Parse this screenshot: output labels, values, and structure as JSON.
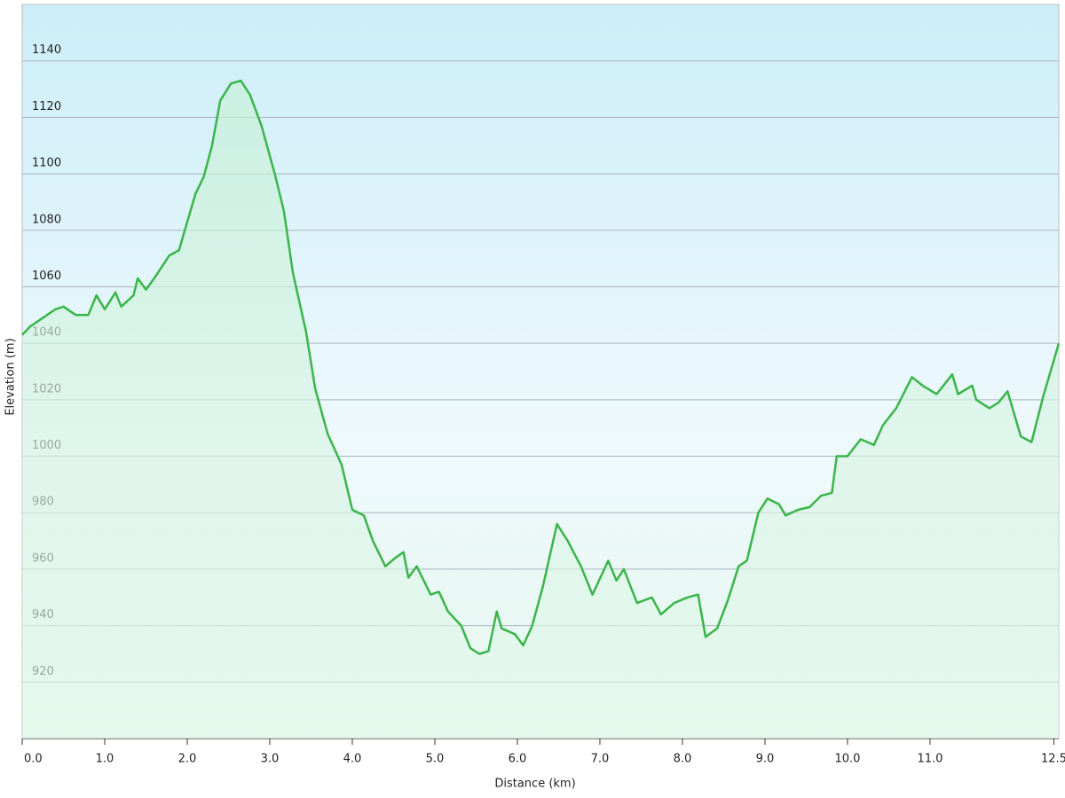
{
  "chart_data": {
    "type": "area",
    "xlabel": "Distance  (km)",
    "ylabel": "Elevation (m)",
    "x": [
      0,
      0.1,
      0.2,
      0.3,
      0.4,
      0.5,
      0.65,
      0.8,
      0.9,
      1.0,
      1.13,
      1.2,
      1.35,
      1.4,
      1.5,
      1.6,
      1.78,
      1.9,
      2.0,
      2.1,
      2.2,
      2.3,
      2.4,
      2.53,
      2.65,
      2.76,
      2.9,
      3.06,
      3.17,
      3.28,
      3.44,
      3.55,
      3.7,
      3.87,
      4.0,
      4.14,
      4.25,
      4.4,
      4.52,
      4.62,
      4.68,
      4.78,
      4.95,
      5.05,
      5.16,
      5.32,
      5.43,
      5.54,
      5.65,
      5.75,
      5.81,
      5.97,
      6.07,
      6.18,
      6.31,
      6.48,
      6.61,
      6.77,
      6.91,
      7.1,
      7.2,
      7.29,
      7.45,
      7.63,
      7.74,
      7.9,
      8.06,
      8.19,
      8.28,
      8.42,
      8.55,
      8.68,
      8.78,
      8.92,
      9.03,
      9.17,
      9.25,
      9.4,
      9.54,
      9.68,
      9.81,
      9.87,
      10.0,
      10.16,
      10.32,
      10.43,
      10.59,
      10.78,
      10.91,
      11.08,
      11.27,
      11.34,
      11.51,
      11.56,
      11.72,
      11.83,
      11.94,
      12.1,
      12.23,
      12.37,
      12.56
    ],
    "series": [
      {
        "name": "Elevation",
        "color": "#3ab54a",
        "values": [
          1043,
          1046,
          1048,
          1050,
          1052,
          1053,
          1050,
          1050,
          1057,
          1052,
          1058,
          1053,
          1057,
          1063,
          1059,
          1063,
          1071,
          1073,
          1083,
          1093,
          1099,
          1110,
          1126,
          1132,
          1133,
          1128,
          1117,
          1100,
          1087,
          1065,
          1044,
          1024,
          1008,
          997,
          981,
          979,
          970,
          961,
          964,
          966,
          957,
          961,
          951,
          952,
          945,
          940,
          932,
          930,
          931,
          945,
          939,
          937,
          933,
          940,
          954,
          976,
          970,
          961,
          951,
          963,
          956,
          960,
          948,
          950,
          944,
          948,
          950,
          951,
          936,
          939,
          949,
          961,
          963,
          980,
          985,
          983,
          979,
          981,
          982,
          986,
          987,
          1000,
          1000,
          1006,
          1004,
          1011,
          1017,
          1028,
          1025,
          1022,
          1029,
          1022,
          1025,
          1020,
          1017,
          1019,
          1023,
          1007,
          1005,
          1021,
          1040
        ]
      }
    ],
    "xlim": [
      0,
      12.56
    ],
    "ylim": [
      900,
      1160
    ],
    "xticks": [
      {
        "value": 0,
        "label": "0.0"
      },
      {
        "value": 1,
        "label": "1.0"
      },
      {
        "value": 2,
        "label": "2.0"
      },
      {
        "value": 3,
        "label": "3.0"
      },
      {
        "value": 4,
        "label": "4.0"
      },
      {
        "value": 5,
        "label": "5.0"
      },
      {
        "value": 6,
        "label": "6.0"
      },
      {
        "value": 7,
        "label": "7.0"
      },
      {
        "value": 8,
        "label": "8.0"
      },
      {
        "value": 9,
        "label": "9.0"
      },
      {
        "value": 10,
        "label": "10.0"
      },
      {
        "value": 11,
        "label": "11.0"
      },
      {
        "value": 12.5,
        "label": "12.5"
      }
    ],
    "yticks": [
      920,
      940,
      960,
      980,
      1000,
      1020,
      1040,
      1060,
      1080,
      1100,
      1120,
      1140
    ],
    "grid": true
  }
}
